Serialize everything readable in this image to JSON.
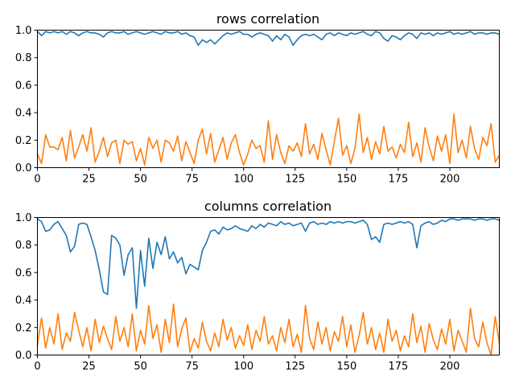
{
  "chart_data": [
    {
      "type": "line",
      "title": "rows correlation",
      "xlim": [
        0,
        224
      ],
      "ylim": [
        0.0,
        1.0
      ],
      "xticks": [
        0,
        25,
        50,
        75,
        100,
        125,
        150,
        175,
        200
      ],
      "yticks": [
        "0.0",
        "0.2",
        "0.4",
        "0.6",
        "0.8",
        "1.0"
      ],
      "grid": false,
      "series": [
        {
          "color": "#1f77b4",
          "x": [
            0,
            2,
            4,
            6,
            8,
            10,
            12,
            14,
            16,
            18,
            20,
            22,
            24,
            26,
            28,
            30,
            32,
            34,
            36,
            38,
            40,
            42,
            44,
            46,
            48,
            50,
            52,
            54,
            56,
            58,
            60,
            62,
            64,
            66,
            68,
            70,
            72,
            74,
            76,
            78,
            80,
            82,
            84,
            86,
            88,
            90,
            92,
            94,
            96,
            98,
            100,
            102,
            104,
            106,
            108,
            110,
            112,
            114,
            116,
            118,
            120,
            122,
            124,
            126,
            128,
            130,
            132,
            134,
            136,
            138,
            140,
            142,
            144,
            146,
            148,
            150,
            152,
            154,
            156,
            158,
            160,
            162,
            164,
            166,
            168,
            170,
            172,
            174,
            176,
            178,
            180,
            182,
            184,
            186,
            188,
            190,
            192,
            194,
            196,
            198,
            200,
            202,
            204,
            206,
            208,
            210,
            212,
            214,
            216,
            218,
            220,
            222,
            224
          ],
          "values": [
            0.99,
            0.96,
            0.99,
            0.98,
            0.99,
            0.98,
            0.99,
            0.97,
            0.99,
            0.98,
            0.96,
            0.98,
            0.99,
            0.98,
            0.98,
            0.97,
            0.95,
            0.98,
            0.99,
            0.98,
            0.98,
            0.99,
            0.97,
            0.98,
            0.99,
            0.98,
            0.97,
            0.98,
            0.99,
            0.98,
            0.97,
            0.99,
            0.98,
            0.98,
            0.99,
            0.97,
            0.98,
            0.96,
            0.95,
            0.89,
            0.93,
            0.91,
            0.93,
            0.9,
            0.93,
            0.96,
            0.98,
            0.97,
            0.98,
            0.99,
            0.97,
            0.97,
            0.95,
            0.97,
            0.98,
            0.97,
            0.96,
            0.92,
            0.96,
            0.93,
            0.97,
            0.95,
            0.89,
            0.93,
            0.96,
            0.97,
            0.96,
            0.97,
            0.95,
            0.93,
            0.97,
            0.98,
            0.96,
            0.98,
            0.97,
            0.96,
            0.98,
            0.97,
            0.98,
            0.99,
            0.97,
            0.96,
            0.99,
            0.98,
            0.94,
            0.92,
            0.96,
            0.95,
            0.93,
            0.96,
            0.98,
            0.97,
            0.94,
            0.98,
            0.97,
            0.98,
            0.96,
            0.98,
            0.97,
            0.98,
            0.99,
            0.97,
            0.98,
            0.97,
            0.98,
            0.99,
            0.97,
            0.98,
            0.98,
            0.97,
            0.98,
            0.98,
            0.97
          ]
        },
        {
          "color": "#ff7f0e",
          "x": [
            0,
            2,
            4,
            6,
            8,
            10,
            12,
            14,
            16,
            18,
            20,
            22,
            24,
            26,
            28,
            30,
            32,
            34,
            36,
            38,
            40,
            42,
            44,
            46,
            48,
            50,
            52,
            54,
            56,
            58,
            60,
            62,
            64,
            66,
            68,
            70,
            72,
            74,
            76,
            78,
            80,
            82,
            84,
            86,
            88,
            90,
            92,
            94,
            96,
            98,
            100,
            102,
            104,
            106,
            108,
            110,
            112,
            114,
            116,
            118,
            120,
            122,
            124,
            126,
            128,
            130,
            132,
            134,
            136,
            138,
            140,
            142,
            144,
            146,
            148,
            150,
            152,
            154,
            156,
            158,
            160,
            162,
            164,
            166,
            168,
            170,
            172,
            174,
            176,
            178,
            180,
            182,
            184,
            186,
            188,
            190,
            192,
            194,
            196,
            198,
            200,
            202,
            204,
            206,
            208,
            210,
            212,
            214,
            216,
            218,
            220,
            222,
            224
          ],
          "values": [
            0.1,
            0.03,
            0.24,
            0.15,
            0.15,
            0.13,
            0.22,
            0.05,
            0.27,
            0.07,
            0.15,
            0.24,
            0.12,
            0.29,
            0.04,
            0.12,
            0.22,
            0.08,
            0.18,
            0.2,
            0.03,
            0.2,
            0.17,
            0.19,
            0.05,
            0.14,
            0.02,
            0.22,
            0.14,
            0.2,
            0.04,
            0.2,
            0.18,
            0.12,
            0.23,
            0.05,
            0.19,
            0.11,
            0.03,
            0.2,
            0.28,
            0.1,
            0.25,
            0.04,
            0.13,
            0.22,
            0.06,
            0.18,
            0.24,
            0.11,
            0.02,
            0.1,
            0.2,
            0.14,
            0.16,
            0.04,
            0.34,
            0.06,
            0.24,
            0.11,
            0.03,
            0.16,
            0.12,
            0.18,
            0.08,
            0.32,
            0.1,
            0.17,
            0.06,
            0.25,
            0.13,
            0.02,
            0.19,
            0.36,
            0.09,
            0.16,
            0.03,
            0.14,
            0.39,
            0.11,
            0.22,
            0.06,
            0.19,
            0.1,
            0.3,
            0.12,
            0.15,
            0.07,
            0.17,
            0.11,
            0.33,
            0.08,
            0.18,
            0.04,
            0.29,
            0.15,
            0.05,
            0.23,
            0.12,
            0.24,
            0.03,
            0.39,
            0.11,
            0.2,
            0.07,
            0.3,
            0.14,
            0.06,
            0.22,
            0.16,
            0.32,
            0.04,
            0.09
          ]
        }
      ]
    },
    {
      "type": "line",
      "title": "columns correlation",
      "xlim": [
        0,
        224
      ],
      "ylim": [
        0.0,
        1.0
      ],
      "xticks": [
        0,
        25,
        50,
        75,
        100,
        125,
        150,
        175,
        200
      ],
      "yticks": [
        "0.0",
        "0.2",
        "0.4",
        "0.6",
        "0.8",
        "1.0"
      ],
      "grid": false,
      "series": [
        {
          "color": "#1f77b4",
          "x": [
            0,
            2,
            4,
            6,
            8,
            10,
            12,
            14,
            16,
            18,
            20,
            22,
            24,
            26,
            28,
            30,
            32,
            34,
            36,
            38,
            40,
            42,
            44,
            46,
            48,
            50,
            52,
            54,
            56,
            58,
            60,
            62,
            64,
            66,
            68,
            70,
            72,
            74,
            76,
            78,
            80,
            82,
            84,
            86,
            88,
            90,
            92,
            94,
            96,
            98,
            100,
            102,
            104,
            106,
            108,
            110,
            112,
            114,
            116,
            118,
            120,
            122,
            124,
            126,
            128,
            130,
            132,
            134,
            136,
            138,
            140,
            142,
            144,
            146,
            148,
            150,
            152,
            154,
            156,
            158,
            160,
            162,
            164,
            166,
            168,
            170,
            172,
            174,
            176,
            178,
            180,
            182,
            184,
            186,
            188,
            190,
            192,
            194,
            196,
            198,
            200,
            202,
            204,
            206,
            208,
            210,
            212,
            214,
            216,
            218,
            220,
            222,
            224
          ],
          "values": [
            0.99,
            0.97,
            0.9,
            0.91,
            0.95,
            0.97,
            0.92,
            0.87,
            0.75,
            0.79,
            0.95,
            0.96,
            0.95,
            0.86,
            0.76,
            0.62,
            0.46,
            0.44,
            0.87,
            0.85,
            0.8,
            0.58,
            0.73,
            0.78,
            0.34,
            0.76,
            0.5,
            0.85,
            0.63,
            0.82,
            0.73,
            0.86,
            0.7,
            0.75,
            0.67,
            0.71,
            0.59,
            0.66,
            0.64,
            0.62,
            0.76,
            0.82,
            0.9,
            0.91,
            0.88,
            0.93,
            0.91,
            0.92,
            0.94,
            0.92,
            0.91,
            0.9,
            0.94,
            0.92,
            0.95,
            0.93,
            0.96,
            0.95,
            0.94,
            0.97,
            0.95,
            0.96,
            0.94,
            0.95,
            0.96,
            0.9,
            0.96,
            0.97,
            0.95,
            0.96,
            0.95,
            0.97,
            0.96,
            0.97,
            0.96,
            0.97,
            0.97,
            0.96,
            0.97,
            0.98,
            0.95,
            0.84,
            0.86,
            0.82,
            0.95,
            0.96,
            0.95,
            0.96,
            0.97,
            0.96,
            0.97,
            0.95,
            0.78,
            0.94,
            0.96,
            0.97,
            0.95,
            0.96,
            0.98,
            0.97,
            0.99,
            0.99,
            0.98,
            0.99,
            0.99,
            0.99,
            0.98,
            0.99,
            0.99,
            0.98,
            0.99,
            0.99,
            0.98
          ]
        },
        {
          "color": "#ff7f0e",
          "x": [
            0,
            2,
            4,
            6,
            8,
            10,
            12,
            14,
            16,
            18,
            20,
            22,
            24,
            26,
            28,
            30,
            32,
            34,
            36,
            38,
            40,
            42,
            44,
            46,
            48,
            50,
            52,
            54,
            56,
            58,
            60,
            62,
            64,
            66,
            68,
            70,
            72,
            74,
            76,
            78,
            80,
            82,
            84,
            86,
            88,
            90,
            92,
            94,
            96,
            98,
            100,
            102,
            104,
            106,
            108,
            110,
            112,
            114,
            116,
            118,
            120,
            122,
            124,
            126,
            128,
            130,
            132,
            134,
            136,
            138,
            140,
            142,
            144,
            146,
            148,
            150,
            152,
            154,
            156,
            158,
            160,
            162,
            164,
            166,
            168,
            170,
            172,
            174,
            176,
            178,
            180,
            182,
            184,
            186,
            188,
            190,
            192,
            194,
            196,
            198,
            200,
            202,
            204,
            206,
            208,
            210,
            212,
            214,
            216,
            218,
            220,
            222,
            224
          ],
          "values": [
            0.07,
            0.27,
            0.05,
            0.2,
            0.08,
            0.3,
            0.04,
            0.16,
            0.1,
            0.31,
            0.18,
            0.06,
            0.2,
            0.03,
            0.26,
            0.09,
            0.21,
            0.12,
            0.04,
            0.28,
            0.1,
            0.2,
            0.06,
            0.3,
            0.03,
            0.18,
            0.08,
            0.36,
            0.12,
            0.22,
            0.02,
            0.26,
            0.09,
            0.37,
            0.06,
            0.19,
            0.27,
            0.02,
            0.12,
            0.05,
            0.24,
            0.1,
            0.03,
            0.16,
            0.06,
            0.26,
            0.11,
            0.2,
            0.05,
            0.14,
            0.07,
            0.22,
            0.04,
            0.18,
            0.1,
            0.28,
            0.08,
            0.14,
            0.03,
            0.2,
            0.09,
            0.26,
            0.06,
            0.15,
            0.02,
            0.36,
            0.12,
            0.04,
            0.24,
            0.08,
            0.2,
            0.03,
            0.17,
            0.1,
            0.28,
            0.06,
            0.22,
            0.02,
            0.14,
            0.31,
            0.08,
            0.2,
            0.04,
            0.16,
            0.02,
            0.26,
            0.1,
            0.18,
            0.03,
            0.14,
            0.06,
            0.3,
            0.09,
            0.21,
            0.02,
            0.23,
            0.11,
            0.04,
            0.19,
            0.08,
            0.26,
            0.03,
            0.18,
            0.1,
            0.02,
            0.34,
            0.12,
            0.06,
            0.24,
            0.09,
            0.0,
            0.28,
            0.09
          ]
        }
      ]
    }
  ]
}
